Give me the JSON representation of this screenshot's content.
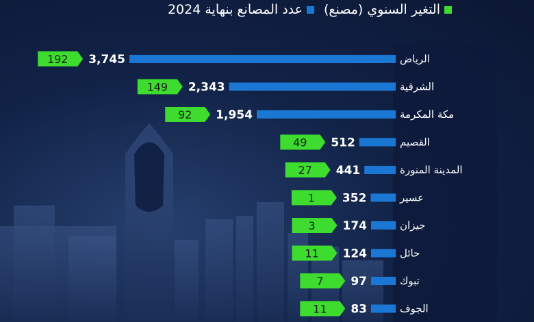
{
  "legend": {
    "total_label": "عدد المصانع بنهاية 2024",
    "change_label": "التغير السنوي (مصنع)"
  },
  "colors": {
    "total": "#1a78d4",
    "change": "#3ddc2f"
  },
  "chart_data": {
    "type": "bar",
    "orientation": "horizontal",
    "title": "",
    "categories": [
      "الرياض",
      "الشرقية",
      "مكة المكرمة",
      "القصيم",
      "المدينة المنورة",
      "عسير",
      "جيزان",
      "حائل",
      "تبوك",
      "الجوف"
    ],
    "series": [
      {
        "name": "عدد المصانع بنهاية 2024",
        "values": [
          3745,
          2343,
          1954,
          512,
          441,
          352,
          174,
          124,
          97,
          83
        ]
      },
      {
        "name": "التغير السنوي (مصنع)",
        "values": [
          192,
          149,
          92,
          49,
          27,
          1,
          3,
          11,
          7,
          11
        ]
      }
    ],
    "value_labels": [
      "3,745",
      "2,343",
      "1,954",
      "512",
      "441",
      "352",
      "174",
      "124",
      "97",
      "83"
    ],
    "change_labels": [
      "192",
      "149",
      "92",
      "49",
      "27",
      "1",
      "3",
      "11",
      "7",
      "11"
    ],
    "grid": false,
    "legend_position": "top"
  }
}
